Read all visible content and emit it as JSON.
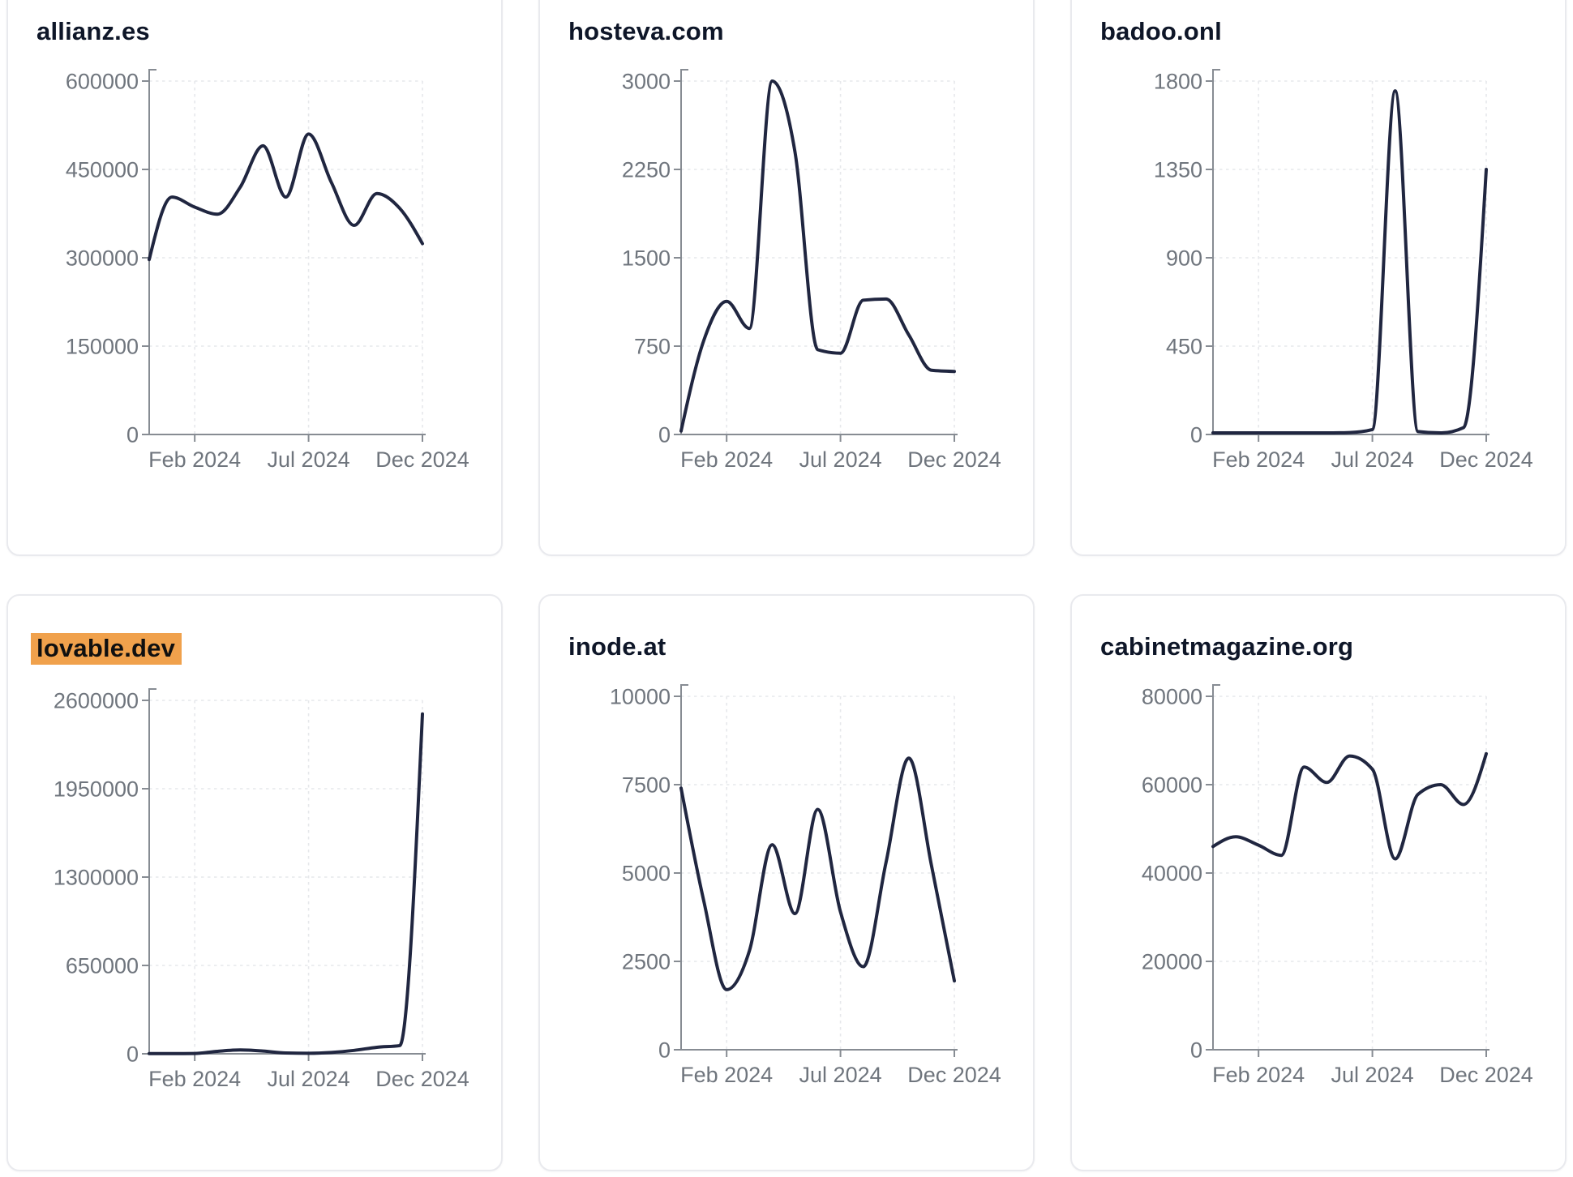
{
  "style": {
    "background": "#ffffff",
    "card_border": "#e9eaee",
    "title_color": "#0e1628",
    "highlight": "#f0a14c",
    "highlight_text": "#101010",
    "tick_label_color": "#6f757d",
    "axis_color": "#878c93",
    "gridline_color": "#e6e8eb",
    "line_color": "#202640"
  },
  "chart_data": [
    {
      "type": "line",
      "title": "allianz.es",
      "highlighted": false,
      "x": [
        "Dec 2023",
        "Jan 2024",
        "Feb 2024",
        "Mar 2024",
        "Apr 2024",
        "May 2024",
        "Jun 2024",
        "Jul 2024",
        "Aug 2024",
        "Sep 2024",
        "Oct 2024",
        "Nov 2024",
        "Dec 2024"
      ],
      "values": [
        297000,
        403000,
        386000,
        374000,
        420000,
        490000,
        403000,
        510000,
        428000,
        355000,
        409000,
        384000,
        324000
      ],
      "y_ticks": [
        0,
        150000,
        300000,
        450000,
        600000
      ],
      "ylim": [
        0,
        600000
      ],
      "x_tick_labels": [
        "Feb 2024",
        "Jul 2024",
        "Dec 2024"
      ],
      "x_tick_indices": [
        2,
        7,
        12
      ],
      "grid": "dashed",
      "legend": "none"
    },
    {
      "type": "line",
      "title": "hosteva.com",
      "highlighted": false,
      "x": [
        "Dec 2023",
        "Jan 2024",
        "Feb 2024",
        "Mar 2024",
        "Apr 2024",
        "May 2024",
        "Jun 2024",
        "Jul 2024",
        "Aug 2024",
        "Sep 2024",
        "Oct 2024",
        "Nov 2024",
        "Dec 2024"
      ],
      "values": [
        30,
        800,
        1130,
        900,
        3000,
        2400,
        720,
        690,
        1140,
        1150,
        845,
        545,
        535
      ],
      "y_ticks": [
        0,
        750,
        1500,
        2250,
        3000
      ],
      "ylim": [
        0,
        3000
      ],
      "x_tick_labels": [
        "Feb 2024",
        "Jul 2024",
        "Dec 2024"
      ],
      "x_tick_indices": [
        2,
        7,
        12
      ],
      "grid": "dashed",
      "legend": "none"
    },
    {
      "type": "line",
      "title": "badoo.onl",
      "highlighted": false,
      "x": [
        "Dec 2023",
        "Jan 2024",
        "Feb 2024",
        "Mar 2024",
        "Apr 2024",
        "May 2024",
        "Jun 2024",
        "Jul 2024",
        "Aug 2024",
        "Sep 2024",
        "Oct 2024",
        "Nov 2024",
        "Dec 2024"
      ],
      "values": [
        8,
        8,
        8,
        8,
        8,
        8,
        10,
        25,
        1750,
        15,
        8,
        35,
        1350
      ],
      "y_ticks": [
        0,
        450,
        900,
        1350,
        1800
      ],
      "ylim": [
        0,
        1800
      ],
      "x_tick_labels": [
        "Feb 2024",
        "Jul 2024",
        "Dec 2024"
      ],
      "x_tick_indices": [
        2,
        7,
        12
      ],
      "grid": "dashed",
      "legend": "none"
    },
    {
      "type": "line",
      "title": "lovable.dev",
      "highlighted": true,
      "x": [
        "Dec 2023",
        "Jan 2024",
        "Feb 2024",
        "Mar 2024",
        "Apr 2024",
        "May 2024",
        "Jun 2024",
        "Jul 2024",
        "Aug 2024",
        "Sep 2024",
        "Oct 2024",
        "Nov 2024",
        "Dec 2024"
      ],
      "values": [
        1500,
        1500,
        2500,
        18000,
        28000,
        20000,
        6000,
        4000,
        10000,
        25000,
        48000,
        60000,
        2500000
      ],
      "y_ticks": [
        0,
        650000,
        1300000,
        1950000,
        2600000
      ],
      "ylim": [
        0,
        2600000
      ],
      "x_tick_labels": [
        "Feb 2024",
        "Jul 2024",
        "Dec 2024"
      ],
      "x_tick_indices": [
        2,
        7,
        12
      ],
      "grid": "dashed",
      "legend": "none"
    },
    {
      "type": "line",
      "title": "inode.at",
      "highlighted": false,
      "x": [
        "Dec 2023",
        "Jan 2024",
        "Feb 2024",
        "Mar 2024",
        "Apr 2024",
        "May 2024",
        "Jun 2024",
        "Jul 2024",
        "Aug 2024",
        "Sep 2024",
        "Oct 2024",
        "Nov 2024",
        "Dec 2024"
      ],
      "values": [
        7400,
        4200,
        1700,
        2800,
        5800,
        3850,
        6800,
        3900,
        2350,
        5300,
        8250,
        5200,
        1950
      ],
      "y_ticks": [
        0,
        2500,
        5000,
        7500,
        10000
      ],
      "ylim": [
        0,
        10000
      ],
      "x_tick_labels": [
        "Feb 2024",
        "Jul 2024",
        "Dec 2024"
      ],
      "x_tick_indices": [
        2,
        7,
        12
      ],
      "grid": "dashed",
      "legend": "none"
    },
    {
      "type": "line",
      "title": "cabinetmagazine.org",
      "highlighted": false,
      "x": [
        "Dec 2023",
        "Jan 2024",
        "Feb 2024",
        "Mar 2024",
        "Apr 2024",
        "May 2024",
        "Jun 2024",
        "Jul 2024",
        "Aug 2024",
        "Sep 2024",
        "Oct 2024",
        "Nov 2024",
        "Dec 2024"
      ],
      "values": [
        46000,
        48200,
        46300,
        44000,
        64000,
        60500,
        66500,
        63500,
        43200,
        57800,
        60000,
        55500,
        67000
      ],
      "y_ticks": [
        0,
        20000,
        40000,
        60000,
        80000
      ],
      "ylim": [
        0,
        80000
      ],
      "x_tick_labels": [
        "Feb 2024",
        "Jul 2024",
        "Dec 2024"
      ],
      "x_tick_indices": [
        2,
        7,
        12
      ],
      "grid": "dashed",
      "legend": "none"
    }
  ]
}
